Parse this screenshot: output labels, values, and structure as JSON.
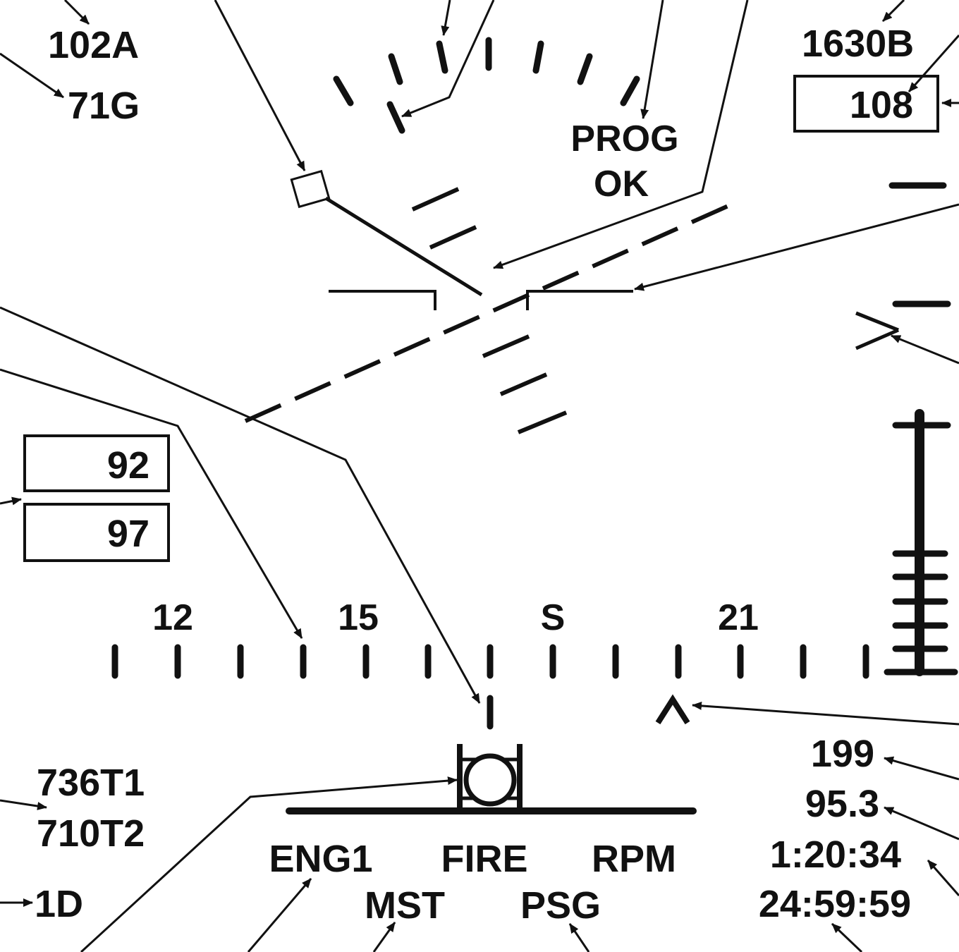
{
  "colors": {
    "ink": "#111111",
    "background": "#ffffff"
  },
  "labels": {
    "ref_102A": "102A",
    "ref_71G": "71G",
    "ref_1630B": "1630B",
    "ref_736T1": "736T1",
    "ref_710T2": "710T2",
    "ref_1D": "1D",
    "prog": "PROG",
    "ok": "OK"
  },
  "boxes": {
    "heading_box": "108",
    "upper_left_box": "92",
    "lower_left_box": "97"
  },
  "heading_scale": {
    "labels": [
      "12",
      "15",
      "S",
      "21"
    ]
  },
  "warnings": {
    "row1": [
      "ENG1",
      "FIRE",
      "RPM"
    ],
    "row2": [
      "MST",
      "PSG"
    ]
  },
  "readouts": {
    "r1": "199",
    "r2": "95.3",
    "r3": "1:20:34",
    "r4": "24:59:59"
  },
  "icons": [
    "arrowhead-icon",
    "caret-icon",
    "target-marker-icon",
    "waterline-icon"
  ]
}
